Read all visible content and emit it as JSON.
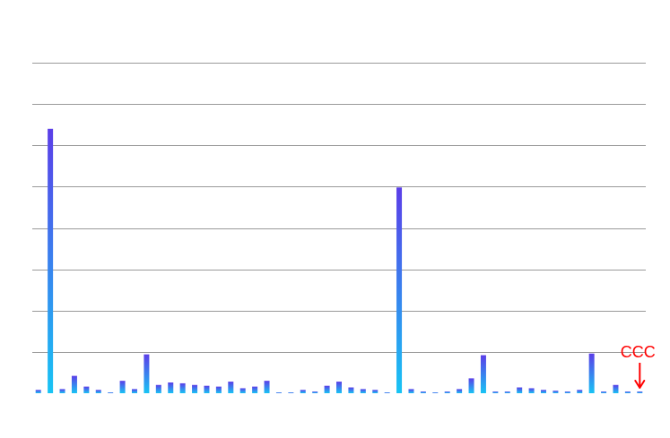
{
  "chart_data": {
    "type": "bar",
    "title": "",
    "xlabel": "",
    "ylabel": "",
    "ylim": [
      0,
      40
    ],
    "grid": true,
    "legend": "none",
    "bar_gradient": {
      "top_color": "#5b3ee8",
      "bottom_color": "#18c4f4"
    },
    "gridline_color": "#9a9a9a",
    "values": [
      0.4,
      32.0,
      0.5,
      2.1,
      0.8,
      0.4,
      0.1,
      1.5,
      0.5,
      4.7,
      1.0,
      1.3,
      1.2,
      1.0,
      0.9,
      0.8,
      1.4,
      0.6,
      0.8,
      1.5,
      0.1,
      0.1,
      0.4,
      0.2,
      0.9,
      1.4,
      0.7,
      0.5,
      0.4,
      0.1,
      24.9,
      0.5,
      0.2,
      0.1,
      0.2,
      0.5,
      1.8,
      4.6,
      0.2,
      0.2,
      0.7,
      0.6,
      0.4,
      0.3,
      0.2,
      0.4,
      4.8,
      0.2,
      1.0,
      0.2,
      0.2
    ],
    "annotation": {
      "text": "CCC",
      "bar_index": 50,
      "color": "#ff0000"
    }
  }
}
